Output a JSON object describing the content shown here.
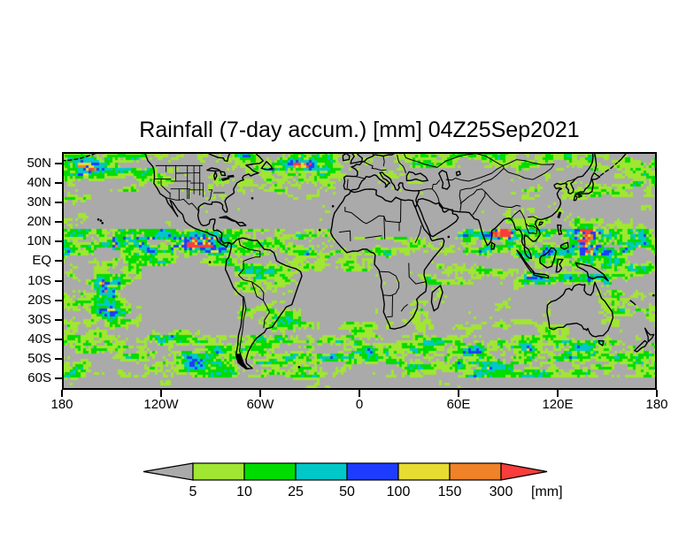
{
  "title": "Rainfall (7-day accum.) [mm] 04Z25Sep2021",
  "map": {
    "no_rain_color": "#aaaaaa",
    "outline_color": "#000000",
    "lat_ticks": [
      {
        "label": "50N",
        "lat": 50
      },
      {
        "label": "40N",
        "lat": 40
      },
      {
        "label": "30N",
        "lat": 30
      },
      {
        "label": "20N",
        "lat": 20
      },
      {
        "label": "10N",
        "lat": 10
      },
      {
        "label": "EQ",
        "lat": 0
      },
      {
        "label": "10S",
        "lat": -10
      },
      {
        "label": "20S",
        "lat": -20
      },
      {
        "label": "30S",
        "lat": -30
      },
      {
        "label": "40S",
        "lat": -40
      },
      {
        "label": "50S",
        "lat": -50
      },
      {
        "label": "60S",
        "lat": -60
      }
    ],
    "lon_ticks": [
      {
        "label": "180",
        "lon": -180
      },
      {
        "label": "120W",
        "lon": -120
      },
      {
        "label": "60W",
        "lon": -60
      },
      {
        "label": "0",
        "lon": 0
      },
      {
        "label": "60E",
        "lon": 60
      },
      {
        "label": "120E",
        "lon": 120
      },
      {
        "label": "180",
        "lon": 180
      }
    ]
  },
  "legend": {
    "units": "[mm]",
    "edge_labels": [
      "5",
      "10",
      "25",
      "50",
      "100",
      "150",
      "300"
    ],
    "below_min_color": "#aaaaaa",
    "above_max_color": "#fa3c3c",
    "bin_colors": [
      "#a0e632",
      "#00dc00",
      "#00c8c8",
      "#1e3cff",
      "#e6dc32",
      "#f08228"
    ]
  },
  "chart_data": {
    "type": "heatmap",
    "title": "Rainfall (7-day accum.) [mm] 04Z25Sep2021",
    "variable": "7-day accumulated rainfall",
    "units": "mm",
    "valid_time_label": "04Z25Sep2021",
    "projection": "equirectangular lat-lon world map",
    "lon_range": [
      -180,
      180
    ],
    "lat_range": [
      -66,
      56
    ],
    "x_tick_labels": [
      "180",
      "120W",
      "60W",
      "0",
      "60E",
      "120E",
      "180"
    ],
    "y_tick_labels": [
      "50N",
      "40N",
      "30N",
      "20N",
      "10N",
      "EQ",
      "10S",
      "20S",
      "30S",
      "40S",
      "50S",
      "60S"
    ],
    "grid": false,
    "legend_position": "bottom-center horizontal colorbar with open-ended arrows",
    "bins": [
      {
        "range_mm": "<5",
        "color": "#aaaaaa",
        "shape": "left-arrow"
      },
      {
        "range_mm": "5-10",
        "color": "#a0e632"
      },
      {
        "range_mm": "10-25",
        "color": "#00dc00"
      },
      {
        "range_mm": "25-50",
        "color": "#00c8c8"
      },
      {
        "range_mm": "50-100",
        "color": "#1e3cff"
      },
      {
        "range_mm": "100-150",
        "color": "#e6dc32"
      },
      {
        "range_mm": "150-300",
        "color": "#f08228"
      },
      {
        "range_mm": ">300",
        "color": "#fa3c3c",
        "shape": "right-arrow"
      }
    ],
    "notable_features": [
      "ITCZ band of heavy rain (cyan/blue with orange 150-300 mm cells) across the eastern Pacific near 5-12N",
      "Large blue 50-100 mm region with orange/red cores (tropical cyclone) in the west Pacific near 135E 10-15N",
      "Heavy monsoon rain over the Bay of Bengal, Southeast Asia and Maritime Continent",
      "Dry gray regions: Sahara, Arabia, central Asia, southeast Pacific, northern Mexico, interior Australia",
      "Elongated midlatitude storm-track rain bands over the North Pacific, North Atlantic and Southern Ocean",
      "South Pacific convergence zone cluster with 150-300 mm cells near 150W 18S",
      "Frontal band with embedded 100-300 mm cells east of southern South America"
    ]
  }
}
